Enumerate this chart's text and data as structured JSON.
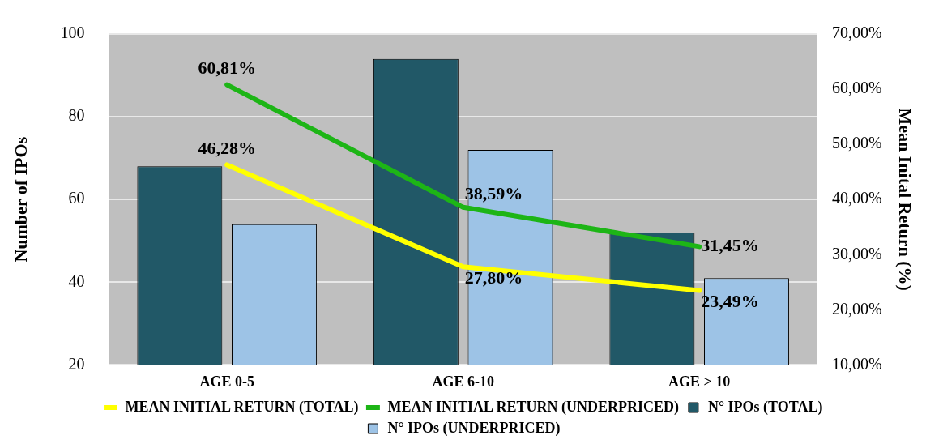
{
  "chart_data": {
    "type": "bar",
    "categories": [
      "AGE 0-5",
      "AGE 6-10",
      "AGE > 10"
    ],
    "ylabel": "Number of IPOs",
    "y2label": "Mean Inital Return (%)",
    "ylim": [
      20,
      100
    ],
    "yticks": [
      20,
      40,
      60,
      80,
      100
    ],
    "y2lim": [
      10,
      70
    ],
    "y2ticks": [
      {
        "value": 10,
        "label": "10,00%"
      },
      {
        "value": 20,
        "label": "20,00%"
      },
      {
        "value": 30,
        "label": "30,00%"
      },
      {
        "value": 40,
        "label": "40,00%"
      },
      {
        "value": 50,
        "label": "50,00%"
      },
      {
        "value": 60,
        "label": "60,00%"
      },
      {
        "value": 70,
        "label": "70,00%"
      }
    ],
    "grid": "y",
    "legend": "bottom",
    "series": [
      {
        "name": "N° IPOs (TOTAL)",
        "color": "#215867",
        "values": [
          68,
          94,
          52
        ]
      },
      {
        "name": "N° IPOs (UNDERPRICED)",
        "color": "#9dc3e6",
        "values": [
          54,
          72,
          41
        ]
      },
      {
        "name": "MEAN INITIAL RETURN (TOTAL)",
        "type": "line",
        "axis": "y2",
        "color": "#ffff00",
        "values": [
          46.28,
          27.8,
          23.49
        ],
        "value_labels": [
          "46,28%",
          "27,80%",
          "23,49%"
        ]
      },
      {
        "name": "MEAN INITIAL RETURN (UNDERPRICED)",
        "type": "line",
        "axis": "y2",
        "color": "#1db516",
        "values": [
          60.81,
          38.59,
          31.45
        ],
        "value_labels": [
          "60,81%",
          "38,59%",
          "31,45%"
        ]
      }
    ]
  }
}
